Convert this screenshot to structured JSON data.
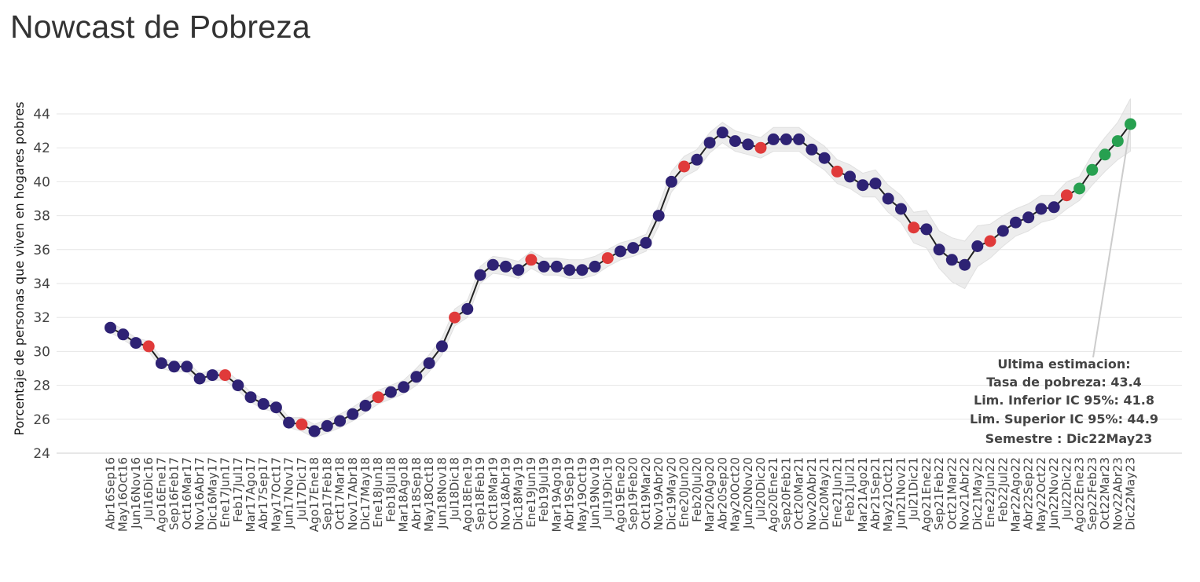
{
  "title": "Nowcast de Pobreza",
  "chart_data": {
    "type": "line",
    "title": "Nowcast de Pobreza",
    "xlabel": "",
    "ylabel": "Porcentaje de personas que viven en hogares pobres",
    "ylim": [
      24,
      45
    ],
    "yticks": [
      24,
      26,
      28,
      30,
      32,
      34,
      36,
      38,
      40,
      42,
      44
    ],
    "grid": true,
    "point_colors": {
      "nowcast": "#2e2274",
      "official": "#e03a3a",
      "latest": "#27a050"
    },
    "line_color": "#222222",
    "band_color": "#d8d8d8",
    "categories": [
      "Abr16Sep16",
      "May16Oct16",
      "Jun16Nov16",
      "Jul16Dic16",
      "Ago16Ene17",
      "Sep16Feb17",
      "Oct16Mar17",
      "Nov16Abr17",
      "Dic16May17",
      "Ene17Jun17",
      "Feb17Jul17",
      "Mar17Ago17",
      "Abr17Sep17",
      "May17Oct17",
      "Jun17Nov17",
      "Jul17Dic17",
      "Ago17Ene18",
      "Sep17Feb18",
      "Oct17Mar18",
      "Nov17Abr18",
      "Dic17May18",
      "Ene18Jun18",
      "Feb18Jul18",
      "Mar18Ago18",
      "Abr18Sep18",
      "May18Oct18",
      "Jun18Nov18",
      "Jul18Dic18",
      "Ago18Ene19",
      "Sep18Feb19",
      "Oct18Mar19",
      "Nov18Abr19",
      "Dic18May19",
      "Ene19Jun19",
      "Feb19Jul19",
      "Mar19Ago19",
      "Abr19Sep19",
      "May19Oct19",
      "Jun19Nov19",
      "Jul19Dic19",
      "Ago19Ene20",
      "Sep19Feb20",
      "Oct19Mar20",
      "Nov19Abr20",
      "Dic19May20",
      "Ene20Jun20",
      "Feb20Jul20",
      "Mar20Ago20",
      "Abr20Sep20",
      "May20Oct20",
      "Jun20Nov20",
      "Jul20Dic20",
      "Ago20Ene21",
      "Sep20Feb21",
      "Oct20Mar21",
      "Nov20Abr21",
      "Dic20May21",
      "Ene21Jun21",
      "Feb21Jul21",
      "Mar21Ago21",
      "Abr21Sep21",
      "May21Oct21",
      "Jun21Nov21",
      "Jul21Dic21",
      "Ago21Ene22",
      "Sep21Feb22",
      "Oct21Mar22",
      "Nov21Abr22",
      "Dic21May22",
      "Ene22Jun22",
      "Feb22Jul22",
      "Mar22Ago22",
      "Abr22Sep22",
      "May22Oct22",
      "Jun22Nov22",
      "Jul22Dic22",
      "Ago22Ene23",
      "Sep22Feb23",
      "Oct22Mar23",
      "Nov22Abr23",
      "Dic22May23"
    ],
    "values": [
      31.4,
      31.0,
      30.5,
      30.3,
      29.3,
      29.1,
      29.1,
      28.4,
      28.6,
      28.6,
      28.0,
      27.3,
      26.9,
      26.7,
      25.8,
      25.7,
      25.3,
      25.6,
      25.9,
      26.3,
      26.8,
      27.3,
      27.6,
      27.9,
      28.5,
      29.3,
      30.3,
      32.0,
      32.5,
      34.5,
      35.1,
      35.0,
      34.8,
      35.4,
      35.0,
      35.0,
      34.8,
      34.8,
      35.0,
      35.5,
      35.9,
      36.1,
      36.4,
      38.0,
      40.0,
      40.9,
      41.3,
      42.3,
      42.9,
      42.4,
      42.2,
      42.0,
      42.5,
      42.5,
      42.5,
      41.9,
      41.4,
      40.6,
      40.3,
      39.8,
      39.9,
      39.0,
      38.4,
      37.3,
      37.2,
      36.0,
      35.4,
      35.1,
      36.2,
      36.5,
      37.1,
      37.6,
      37.9,
      38.4,
      38.5,
      39.2,
      39.6,
      40.7,
      41.6,
      42.4,
      43.4
    ],
    "lower_ci": [
      31.1,
      30.7,
      30.2,
      30.0,
      29.0,
      28.8,
      28.8,
      28.1,
      28.3,
      28.3,
      27.7,
      27.0,
      26.6,
      26.4,
      25.5,
      25.3,
      24.9,
      25.2,
      25.5,
      25.9,
      26.4,
      26.9,
      27.2,
      27.5,
      28.0,
      28.8,
      29.8,
      31.5,
      32.0,
      34.0,
      34.6,
      34.5,
      34.3,
      34.9,
      34.5,
      34.5,
      34.3,
      34.3,
      34.5,
      35.0,
      35.4,
      35.6,
      35.9,
      37.4,
      39.4,
      40.3,
      40.7,
      41.7,
      42.3,
      41.8,
      41.6,
      41.4,
      41.8,
      41.8,
      41.8,
      41.2,
      40.7,
      39.9,
      39.6,
      39.1,
      39.1,
      38.2,
      37.6,
      36.4,
      36.1,
      34.9,
      34.1,
      33.7,
      35.0,
      35.5,
      36.2,
      36.8,
      37.1,
      37.6,
      37.8,
      38.4,
      38.9,
      39.8,
      40.6,
      41.3,
      41.8
    ],
    "upper_ci": [
      31.7,
      31.3,
      30.8,
      30.6,
      29.6,
      29.4,
      29.4,
      28.7,
      28.9,
      28.9,
      28.3,
      27.6,
      27.2,
      27.0,
      26.1,
      26.1,
      25.7,
      26.0,
      26.3,
      26.7,
      27.2,
      27.7,
      28.0,
      28.3,
      29.0,
      29.8,
      30.8,
      32.5,
      33.0,
      35.0,
      35.6,
      35.5,
      35.3,
      35.9,
      35.5,
      35.5,
      35.4,
      35.4,
      35.6,
      36.0,
      36.4,
      36.6,
      36.9,
      38.6,
      40.6,
      41.5,
      41.9,
      42.9,
      43.5,
      43.0,
      42.8,
      42.6,
      43.2,
      43.2,
      43.2,
      42.6,
      42.1,
      41.3,
      41.0,
      40.5,
      40.7,
      39.8,
      39.2,
      38.2,
      38.3,
      37.1,
      36.7,
      36.5,
      37.4,
      37.5,
      38.0,
      38.4,
      38.7,
      39.2,
      39.2,
      40.0,
      40.3,
      41.6,
      42.6,
      43.5,
      44.9
    ],
    "point_types": [
      "n",
      "n",
      "n",
      "o",
      "n",
      "n",
      "n",
      "n",
      "n",
      "o",
      "n",
      "n",
      "n",
      "n",
      "n",
      "o",
      "n",
      "n",
      "n",
      "n",
      "n",
      "o",
      "n",
      "n",
      "n",
      "n",
      "n",
      "o",
      "n",
      "n",
      "n",
      "n",
      "n",
      "o",
      "n",
      "n",
      "n",
      "n",
      "n",
      "o",
      "n",
      "n",
      "n",
      "n",
      "n",
      "o",
      "n",
      "n",
      "n",
      "n",
      "n",
      "o",
      "n",
      "n",
      "n",
      "n",
      "n",
      "o",
      "n",
      "n",
      "n",
      "n",
      "n",
      "o",
      "n",
      "n",
      "n",
      "n",
      "n",
      "o",
      "n",
      "n",
      "n",
      "n",
      "n",
      "o",
      "l",
      "l",
      "l",
      "l",
      "l"
    ],
    "annotation": {
      "heading": "Ultima estimacion:",
      "rate": "Tasa de pobreza:  43.4",
      "lower": "Lim. Inferior IC 95%:  41.8",
      "upper": "Lim. Superior IC 95%:  44.9",
      "semester": "Semestre : Dic22May23"
    }
  }
}
